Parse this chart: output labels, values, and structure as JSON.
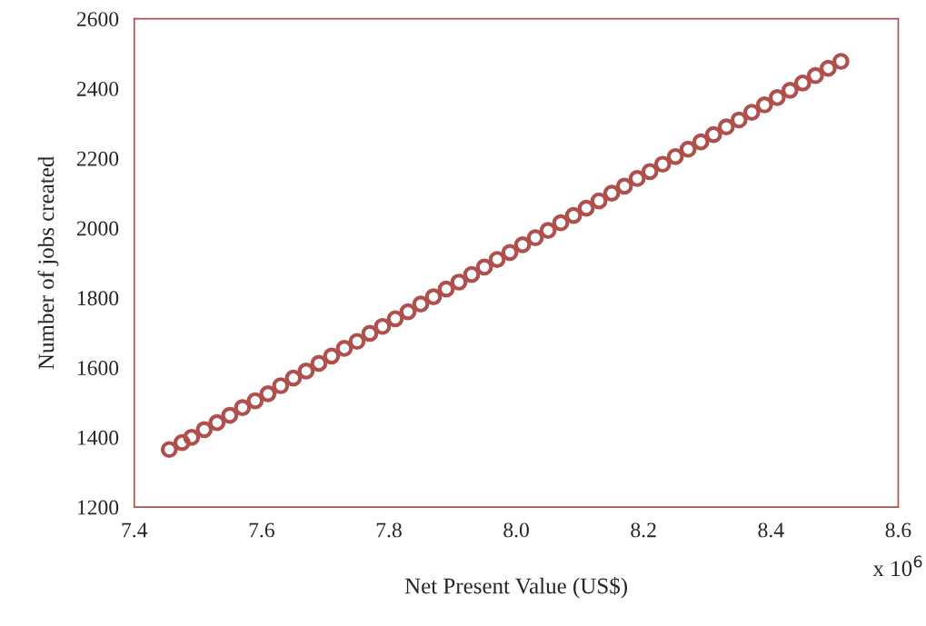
{
  "chart_data": {
    "type": "scatter",
    "xlabel": "Net Present Value (US$)",
    "ylabel": "Number of jobs created",
    "x": [
      7.455,
      7.475,
      7.49,
      7.51,
      7.53,
      7.55,
      7.57,
      7.59,
      7.61,
      7.63,
      7.65,
      7.67,
      7.69,
      7.71,
      7.73,
      7.75,
      7.77,
      7.79,
      7.81,
      7.83,
      7.85,
      7.87,
      7.89,
      7.91,
      7.93,
      7.95,
      7.97,
      7.99,
      8.01,
      8.03,
      8.05,
      8.07,
      8.09,
      8.11,
      8.13,
      8.15,
      8.17,
      8.19,
      8.21,
      8.23,
      8.25,
      8.27,
      8.29,
      8.31,
      8.33,
      8.35,
      8.37,
      8.39,
      8.41,
      8.43,
      8.45,
      8.47,
      8.49,
      8.51
    ],
    "series": [
      {
        "color": "#b0504c",
        "values": [
          1365,
          1385,
          1400,
          1422,
          1442,
          1463,
          1485,
          1505,
          1525,
          1548,
          1570,
          1590,
          1612,
          1633,
          1655,
          1675,
          1698,
          1718,
          1740,
          1760,
          1782,
          1803,
          1825,
          1845,
          1867,
          1888,
          1910,
          1930,
          1952,
          1972,
          1993,
          2015,
          2036,
          2057,
          2078,
          2100,
          2120,
          2142,
          2162,
          2183,
          2205,
          2226,
          2247,
          2268,
          2290,
          2310,
          2332,
          2353,
          2374,
          2395,
          2416,
          2437,
          2458,
          2478
        ]
      }
    ],
    "xlim": [
      7.4,
      8.6
    ],
    "xticks": [
      7.4,
      7.6,
      7.8,
      {
        "value": 8.0,
        "label": "8.0"
      },
      8.2,
      8.4,
      8.6
    ],
    "ylim": [
      1200,
      2600
    ],
    "yticks": [
      1200,
      1400,
      1600,
      1800,
      2000,
      2200,
      2400,
      2600
    ],
    "marker": "circle",
    "grid": false,
    "legend": false,
    "annotations": [
      "x 10$^{6}$"
    ]
  }
}
